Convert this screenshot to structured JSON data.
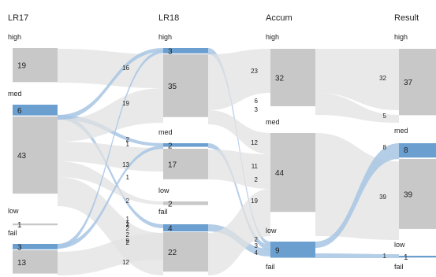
{
  "chart_data": {
    "type": "sankey",
    "colors": {
      "node": "#c8c8c8",
      "highlight": "#6b9fd0",
      "flow": "#e2e2e2",
      "flow_highlight": "#a8c6e4"
    },
    "columns": [
      {
        "title": "LR17",
        "groups": [
          {
            "label": "high",
            "values": [
              19
            ]
          },
          {
            "label": "med",
            "values": [
              6,
              43
            ],
            "highlight": [
              true,
              false
            ]
          },
          {
            "label": "low",
            "values": [
              1
            ]
          },
          {
            "label": "fail",
            "values": [
              3,
              13
            ],
            "highlight": [
              true,
              false
            ]
          }
        ]
      },
      {
        "title": "LR18",
        "groups": [
          {
            "label": "high",
            "values": [
              3,
              35
            ],
            "highlight": [
              true,
              false
            ]
          },
          {
            "label": "med",
            "values": [
              2,
              17
            ],
            "highlight": [
              true,
              false
            ]
          },
          {
            "label": "low",
            "values": [
              2
            ]
          },
          {
            "label": "fail",
            "values": [
              4,
              22
            ],
            "highlight": [
              true,
              false
            ]
          }
        ]
      },
      {
        "title": "Accum",
        "groups": [
          {
            "label": "high",
            "values": [
              32
            ]
          },
          {
            "label": "med",
            "values": [
              44
            ]
          },
          {
            "label": "low",
            "values": [
              9
            ],
            "highlight": [
              true
            ]
          },
          {
            "label": "fail",
            "values": []
          }
        ]
      },
      {
        "title": "Result",
        "groups": [
          {
            "label": "high",
            "values": [
              37
            ]
          },
          {
            "label": "med",
            "values": [
              8,
              39
            ],
            "highlight": [
              true,
              false
            ]
          },
          {
            "label": "low",
            "values": [
              1
            ],
            "highlight": [
              true
            ]
          },
          {
            "label": "fail",
            "values": []
          }
        ]
      }
    ],
    "flow_labels": [
      [
        "16",
        "19",
        "13",
        "1",
        "2",
        "12",
        "9",
        "1",
        "1",
        "2",
        "2",
        "2",
        "2",
        "2",
        "1"
      ],
      [
        "23",
        "6",
        "3",
        "12",
        "11",
        "2",
        "19",
        "2",
        "3",
        "4"
      ],
      [
        "32",
        "5",
        "8",
        "39",
        "1"
      ]
    ]
  }
}
